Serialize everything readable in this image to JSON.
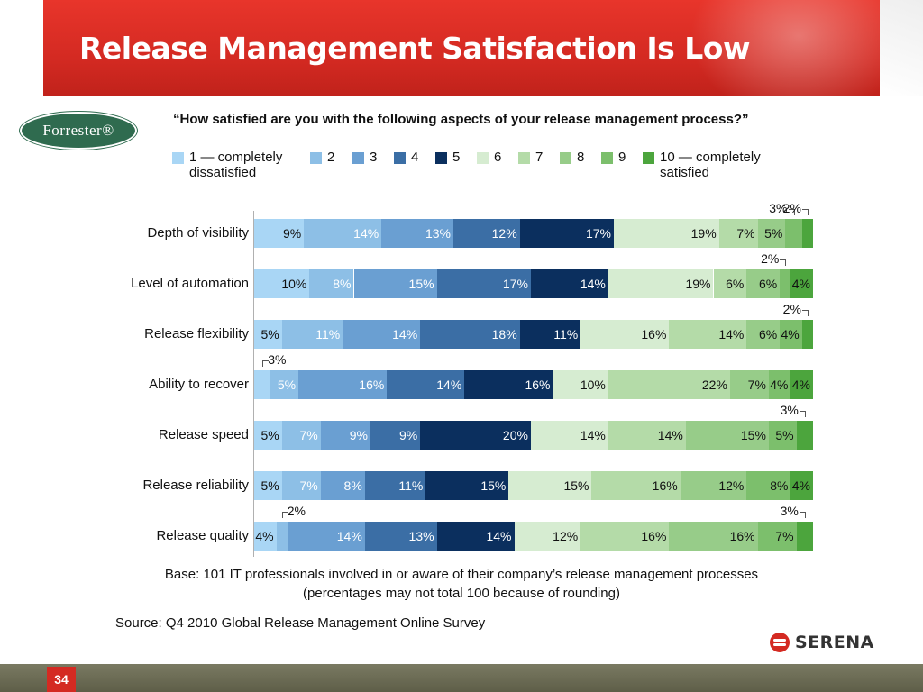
{
  "slide": {
    "title": "Release Management Satisfaction Is Low",
    "question": "“How satisfied are you with the following aspects of your release management process?”",
    "forrester_logo_text": "Forrester®",
    "base_note_line1": "Base: 101 IT professionals involved in or aware of their company’s release management processes",
    "base_note_line2": "(percentages may not total 100 because of rounding)",
    "source": "Source: Q4 2010 Global Release Management Online Survey",
    "serena_logo_text": "SERENA",
    "page_number": "34"
  },
  "colors": {
    "banner": "#d42a22",
    "scale": [
      "#a9d6f5",
      "#8dbfe6",
      "#6a9fd2",
      "#3b6ea5",
      "#0b2f5e",
      "#d6ecd1",
      "#b4dba8",
      "#97cc89",
      "#7cbf6c",
      "#4ca53d"
    ]
  },
  "legend": [
    {
      "label": "1 — completely",
      "label2": "dissatisfied"
    },
    {
      "label": "2"
    },
    {
      "label": "3"
    },
    {
      "label": "4"
    },
    {
      "label": "5"
    },
    {
      "label": "6"
    },
    {
      "label": "7"
    },
    {
      "label": "8"
    },
    {
      "label": "9"
    },
    {
      "label": "10 — completely",
      "label2": "satisfied"
    }
  ],
  "chart_data": {
    "type": "bar",
    "orientation": "horizontal",
    "stacked": true,
    "title": "“How satisfied are you with the following aspects of your release management process?”",
    "categories": [
      "Depth of visibility",
      "Level of automation",
      "Release flexibility",
      "Ability to recover",
      "Release speed",
      "Release reliability",
      "Release quality"
    ],
    "series": [
      {
        "name": "1 — completely dissatisfied",
        "values": [
          9,
          10,
          5,
          3,
          5,
          5,
          4
        ]
      },
      {
        "name": "2",
        "values": [
          14,
          8,
          11,
          5,
          7,
          7,
          2
        ]
      },
      {
        "name": "3",
        "values": [
          13,
          15,
          14,
          16,
          9,
          8,
          14
        ]
      },
      {
        "name": "4",
        "values": [
          12,
          17,
          18,
          14,
          9,
          11,
          13
        ]
      },
      {
        "name": "5",
        "values": [
          17,
          14,
          11,
          16,
          20,
          15,
          14
        ]
      },
      {
        "name": "6",
        "values": [
          19,
          19,
          16,
          10,
          14,
          15,
          12
        ]
      },
      {
        "name": "7",
        "values": [
          7,
          6,
          14,
          22,
          14,
          16,
          16
        ]
      },
      {
        "name": "8",
        "values": [
          5,
          6,
          6,
          7,
          15,
          12,
          16
        ]
      },
      {
        "name": "9",
        "values": [
          3,
          2,
          4,
          4,
          5,
          8,
          7
        ]
      },
      {
        "name": "10 — completely satisfied",
        "values": [
          2,
          4,
          2,
          4,
          3,
          4,
          3
        ]
      }
    ],
    "value_suffix": "%",
    "xlim": [
      0,
      100
    ],
    "grid": false,
    "legend_position": "top"
  }
}
